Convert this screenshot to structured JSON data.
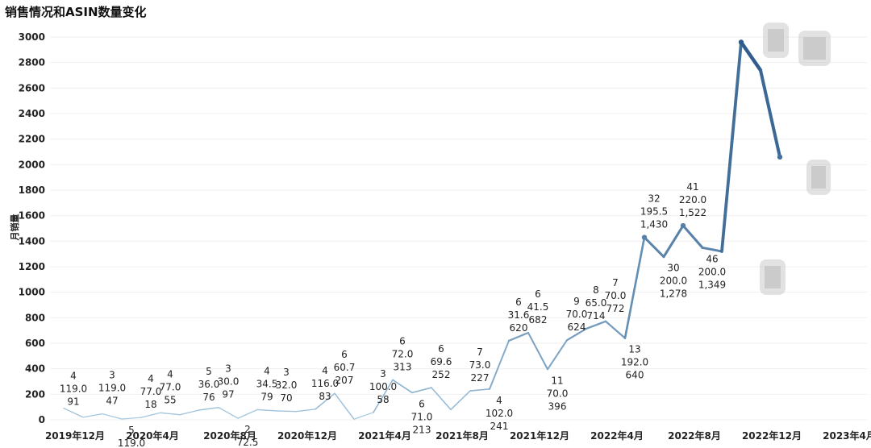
{
  "chart_data": {
    "type": "line",
    "title": "销售情况和ASIN数量变化",
    "ylabel": "月销量",
    "xlabel": "",
    "ylim": [
      0,
      3000
    ],
    "yticks": [
      0,
      200,
      400,
      600,
      800,
      1000,
      1200,
      1400,
      1600,
      1800,
      2000,
      2200,
      2400,
      2600,
      2800,
      3000
    ],
    "grid": "horizontal",
    "colors": {
      "light": "#a8cbe3",
      "dark": "#2f5f8f",
      "grid": "#efefef"
    },
    "xtick_labels": [
      "2019年12月",
      "2020年4月",
      "2020年8月",
      "2020年12月",
      "2021年4月",
      "2021年8月",
      "2021年12月",
      "2022年4月",
      "2022年8月",
      "2022年12月",
      "2023年4月"
    ],
    "xtick_index": [
      0,
      4,
      8,
      12,
      16,
      20,
      24,
      28,
      32,
      36,
      40
    ],
    "series": [
      {
        "values": [
          91,
          20,
          47,
          6,
          18,
          55,
          40,
          76,
          97,
          12,
          79,
          70,
          65,
          83,
          207,
          5,
          58,
          313,
          213,
          252,
          80,
          227,
          241,
          620,
          682,
          396,
          624,
          714,
          772,
          640,
          1430,
          1278,
          1522,
          1349,
          1320,
          2960,
          2740,
          2060
        ]
      }
    ],
    "data_labels": [
      {
        "i": 0,
        "lines": [
          "4",
          "119.0",
          "91"
        ]
      },
      {
        "i": 2,
        "lines": [
          "3",
          "119.0",
          "47"
        ]
      },
      {
        "i": 3,
        "lines": [
          "5",
          "119.0",
          "6"
        ]
      },
      {
        "i": 4,
        "lines": [
          "4",
          "77.0",
          "18"
        ]
      },
      {
        "i": 5,
        "lines": [
          "4",
          "77.0",
          "55"
        ]
      },
      {
        "i": 7,
        "lines": [
          "5",
          "36.0",
          "76"
        ]
      },
      {
        "i": 8,
        "lines": [
          "3",
          "30.0",
          "97"
        ]
      },
      {
        "i": 9,
        "lines": [
          "2",
          "72.5",
          "12"
        ]
      },
      {
        "i": 10,
        "lines": [
          "4",
          "34.5",
          "79"
        ]
      },
      {
        "i": 11,
        "lines": [
          "3",
          "32.0",
          "70"
        ]
      },
      {
        "i": 13,
        "lines": [
          "4",
          "116.0",
          "83"
        ]
      },
      {
        "i": 14,
        "lines": [
          "6",
          "60.7",
          "207"
        ]
      },
      {
        "i": 16,
        "lines": [
          "3",
          "100.0",
          "58"
        ]
      },
      {
        "i": 17,
        "lines": [
          "6",
          "72.0",
          "313"
        ]
      },
      {
        "i": 18,
        "lines": [
          "6",
          "71.0",
          "213"
        ]
      },
      {
        "i": 19,
        "lines": [
          "6",
          "69.6",
          "252"
        ]
      },
      {
        "i": 21,
        "lines": [
          "7",
          "73.0",
          "227"
        ]
      },
      {
        "i": 22,
        "lines": [
          "4",
          "102.0",
          "241"
        ]
      },
      {
        "i": 23,
        "lines": [
          "6",
          "31.6",
          "620"
        ]
      },
      {
        "i": 24,
        "lines": [
          "6",
          "41.5",
          "682"
        ]
      },
      {
        "i": 25,
        "lines": [
          "11",
          "70.0",
          "396"
        ]
      },
      {
        "i": 26,
        "lines": [
          "9",
          "70.0",
          "624"
        ]
      },
      {
        "i": 27,
        "lines": [
          "8",
          "65.0",
          "714"
        ]
      },
      {
        "i": 28,
        "lines": [
          "7",
          "70.0",
          "772"
        ]
      },
      {
        "i": 29,
        "lines": [
          "13",
          "192.0",
          "640"
        ]
      },
      {
        "i": 30,
        "lines": [
          "32",
          "195.5",
          "1,430"
        ]
      },
      {
        "i": 31,
        "lines": [
          "30",
          "200.0",
          "1,278"
        ]
      },
      {
        "i": 32,
        "lines": [
          "41",
          "220.0",
          "1,522"
        ]
      },
      {
        "i": 33,
        "lines": [
          "46",
          "200.0",
          "1,349"
        ]
      }
    ]
  }
}
